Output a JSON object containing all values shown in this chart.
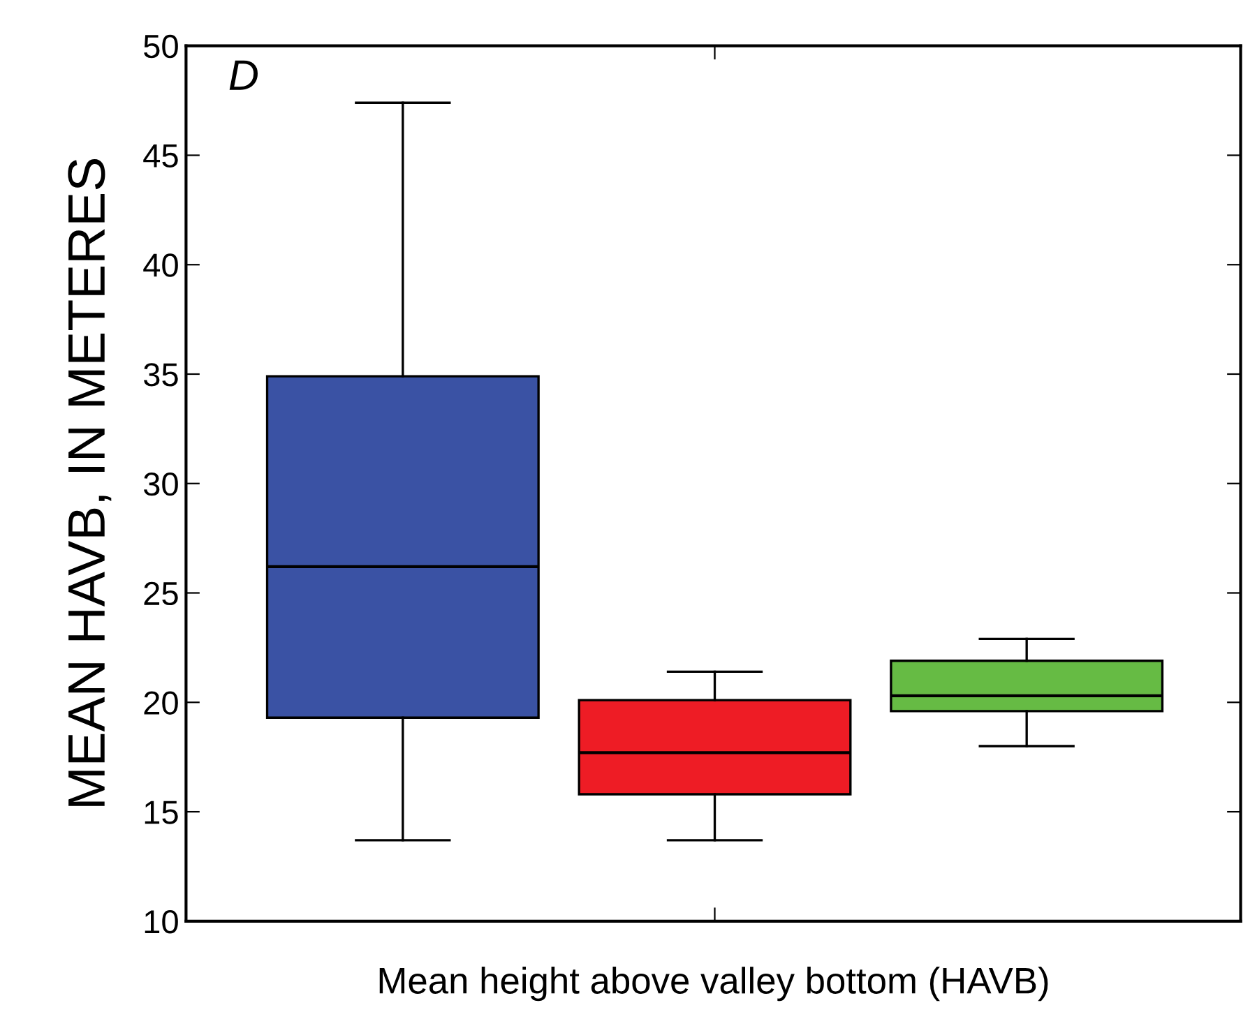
{
  "chart_data": {
    "type": "box",
    "xlabel": "Mean height above valley bottom (HAVB)",
    "ylabel": "MEAN HAVB, IN METERES",
    "categories": [
      null,
      null,
      null
    ],
    "boxes": [
      {
        "low": 13.7,
        "q1": 19.3,
        "median": 26.2,
        "q3": 34.9,
        "high": 47.4
      },
      {
        "low": 13.7,
        "q1": 15.8,
        "median": 17.7,
        "q3": 20.1,
        "high": 21.4
      },
      {
        "low": 18.0,
        "q1": 19.6,
        "median": 20.3,
        "q3": 21.9,
        "high": 22.9
      }
    ],
    "colors": [
      "#3a52a4",
      "#ee1c25",
      "#66bb44"
    ],
    "ylim": [
      10,
      50
    ],
    "yticks": [
      10,
      15,
      20,
      25,
      30,
      35,
      40,
      45,
      50
    ],
    "annotations": [
      "D"
    ],
    "grid": false,
    "legend": false
  }
}
